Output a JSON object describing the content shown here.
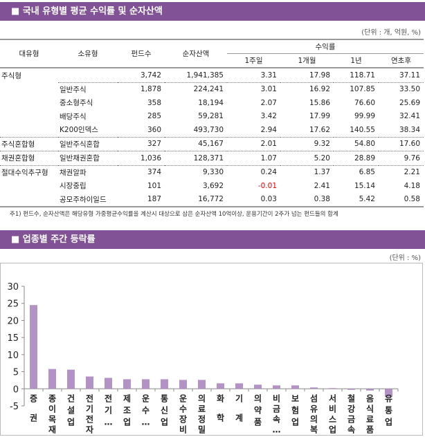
{
  "section1": {
    "title": "■ 국내 유형별 평균 수익률 및 순자산액",
    "unit": "(단위 : 개, 억원, %)"
  },
  "table": {
    "headers": {
      "major": "대유형",
      "minor": "소유형",
      "funds": "펀드수",
      "assets": "순자산액",
      "returns": "수익률",
      "w1": "1주일",
      "m1": "1개월",
      "y1": "1년",
      "ytd": "연초후"
    },
    "rows": [
      {
        "major": "주식형",
        "minor": "",
        "funds": "3,742",
        "assets": "1,941,385",
        "w1": "3.31",
        "m1": "17.98",
        "y1": "118.71",
        "ytd": "37.11"
      },
      {
        "major": "",
        "minor": "일반주식",
        "funds": "1,878",
        "assets": "224,241",
        "w1": "3.01",
        "m1": "16.92",
        "y1": "107.85",
        "ytd": "33.50"
      },
      {
        "major": "",
        "minor": "중소형주식",
        "funds": "358",
        "assets": "18,194",
        "w1": "2.07",
        "m1": "15.86",
        "y1": "76.60",
        "ytd": "25.69"
      },
      {
        "major": "",
        "minor": "배당주식",
        "funds": "285",
        "assets": "59,281",
        "w1": "3.42",
        "m1": "17.99",
        "y1": "99.99",
        "ytd": "32.41"
      },
      {
        "major": "",
        "minor": "K200인덱스",
        "funds": "360",
        "assets": "493,730",
        "w1": "2.94",
        "m1": "17.62",
        "y1": "140.55",
        "ytd": "38.34"
      },
      {
        "major": "주식혼합형",
        "minor": "일반주식혼합",
        "funds": "327",
        "assets": "45,167",
        "w1": "2.01",
        "m1": "9.32",
        "y1": "54.80",
        "ytd": "17.60"
      },
      {
        "major": "채권혼합형",
        "minor": "일반채권혼합",
        "funds": "1,036",
        "assets": "128,371",
        "w1": "1.07",
        "m1": "5.20",
        "y1": "28.89",
        "ytd": "9.76"
      },
      {
        "major": "절대수익추구형",
        "minor": "채권알파",
        "funds": "374",
        "assets": "9,330",
        "w1": "0.24",
        "m1": "1.37",
        "y1": "6.85",
        "ytd": "2.21"
      },
      {
        "major": "",
        "minor": "시장중립",
        "funds": "101",
        "assets": "3,692",
        "w1": "-0.01",
        "m1": "2.41",
        "y1": "15.14",
        "ytd": "4.18"
      },
      {
        "major": "",
        "minor": "공모주하이일드",
        "funds": "187",
        "assets": "16,772",
        "w1": "0.03",
        "m1": "0.38",
        "y1": "5.42",
        "ytd": "0.58"
      }
    ],
    "negative_color": "#e00000"
  },
  "note": "주1) 펀드수, 순자산액은 해당유형 가중평균수익률을 계산시 대상으로 삼은 순자산액 10억이상, 운용기간이 2주가 넘는 펀드들의 합계",
  "section2": {
    "title": "■ 업종별 주간 등락률",
    "unit": "(단위 : %)"
  },
  "chart_data": {
    "type": "bar",
    "categories": [
      "증권",
      "종이목재",
      "건설업",
      "전기전자",
      "전기…",
      "제조업",
      "운수…",
      "통신업",
      "운수장비",
      "의료정밀",
      "화학",
      "기계",
      "의약품",
      "비금속…",
      "보험업",
      "섬유의복",
      "서비스업",
      "철강금속",
      "음식료품",
      "유통업"
    ],
    "values": [
      24.5,
      5.8,
      5.6,
      3.6,
      3.2,
      2.8,
      2.8,
      2.8,
      2.6,
      2.6,
      1.6,
      1.6,
      1.2,
      1.0,
      1.0,
      0.4,
      0.2,
      -0.3,
      -0.5,
      -2.4
    ],
    "ylim": [
      -5,
      30
    ],
    "yticks": [
      30,
      25,
      20,
      15,
      10,
      5,
      0,
      -5
    ],
    "grid": false,
    "bar_color": "#b392c6",
    "header_color": "#825296"
  }
}
